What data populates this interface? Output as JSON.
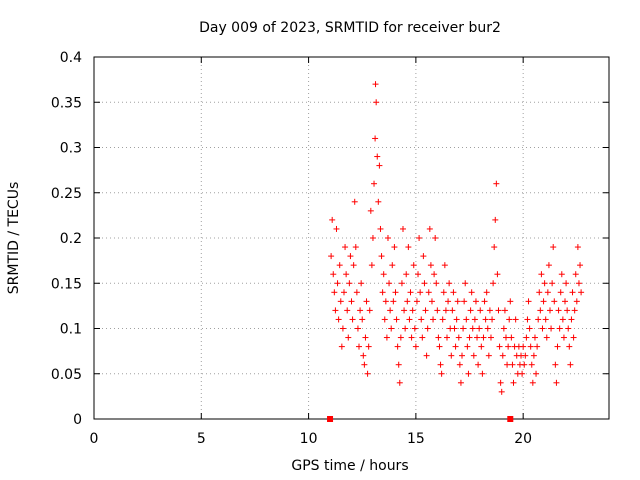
{
  "chart_data": {
    "type": "scatter",
    "title": "Day 009 of 2023, SRMTID for receiver bur2",
    "xlabel": "GPS time / hours",
    "ylabel": "SRMTID / TECUs",
    "xlim": [
      0,
      24
    ],
    "ylim": [
      0,
      0.4
    ],
    "xticks": [
      0,
      5,
      10,
      15,
      20
    ],
    "xtick_labels": [
      "0",
      "5",
      "10",
      "15",
      "20"
    ],
    "yticks": [
      0,
      0.05,
      0.1,
      0.15,
      0.2,
      0.25,
      0.3,
      0.35,
      0.4
    ],
    "ytick_labels": [
      "0",
      "0.05",
      "0.1",
      "0.15",
      "0.2",
      "0.25",
      "0.3",
      "0.35",
      "0.4"
    ],
    "grid": true,
    "marker": "plus",
    "color": "#ff0000",
    "axis_markers": [
      11.0,
      19.4
    ],
    "series": [
      {
        "name": "SRMTID",
        "points": [
          [
            11.05,
            0.18
          ],
          [
            11.1,
            0.22
          ],
          [
            11.15,
            0.16
          ],
          [
            11.2,
            0.14
          ],
          [
            11.25,
            0.12
          ],
          [
            11.3,
            0.21
          ],
          [
            11.35,
            0.15
          ],
          [
            11.4,
            0.11
          ],
          [
            11.45,
            0.17
          ],
          [
            11.5,
            0.13
          ],
          [
            11.55,
            0.08
          ],
          [
            11.6,
            0.1
          ],
          [
            11.65,
            0.14
          ],
          [
            11.7,
            0.19
          ],
          [
            11.75,
            0.16
          ],
          [
            11.8,
            0.12
          ],
          [
            11.85,
            0.09
          ],
          [
            11.9,
            0.15
          ],
          [
            11.95,
            0.18
          ],
          [
            12.0,
            0.13
          ],
          [
            12.05,
            0.11
          ],
          [
            12.1,
            0.17
          ],
          [
            12.15,
            0.24
          ],
          [
            12.2,
            0.19
          ],
          [
            12.25,
            0.14
          ],
          [
            12.3,
            0.1
          ],
          [
            12.35,
            0.08
          ],
          [
            12.4,
            0.12
          ],
          [
            12.45,
            0.15
          ],
          [
            12.5,
            0.11
          ],
          [
            12.55,
            0.07
          ],
          [
            12.6,
            0.06
          ],
          [
            12.65,
            0.09
          ],
          [
            12.7,
            0.13
          ],
          [
            12.75,
            0.05
          ],
          [
            12.8,
            0.08
          ],
          [
            12.85,
            0.12
          ],
          [
            12.9,
            0.23
          ],
          [
            12.95,
            0.17
          ],
          [
            13.0,
            0.2
          ],
          [
            13.05,
            0.26
          ],
          [
            13.1,
            0.31
          ],
          [
            13.12,
            0.37
          ],
          [
            13.15,
            0.35
          ],
          [
            13.2,
            0.29
          ],
          [
            13.25,
            0.24
          ],
          [
            13.3,
            0.28
          ],
          [
            13.35,
            0.21
          ],
          [
            13.4,
            0.18
          ],
          [
            13.45,
            0.14
          ],
          [
            13.5,
            0.16
          ],
          [
            13.55,
            0.11
          ],
          [
            13.6,
            0.13
          ],
          [
            13.65,
            0.09
          ],
          [
            13.7,
            0.2
          ],
          [
            13.75,
            0.15
          ],
          [
            13.8,
            0.12
          ],
          [
            13.85,
            0.1
          ],
          [
            13.9,
            0.17
          ],
          [
            13.95,
            0.13
          ],
          [
            14.0,
            0.19
          ],
          [
            14.05,
            0.14
          ],
          [
            14.1,
            0.11
          ],
          [
            14.15,
            0.08
          ],
          [
            14.2,
            0.06
          ],
          [
            14.25,
            0.04
          ],
          [
            14.3,
            0.09
          ],
          [
            14.35,
            0.15
          ],
          [
            14.4,
            0.21
          ],
          [
            14.45,
            0.12
          ],
          [
            14.5,
            0.1
          ],
          [
            14.55,
            0.16
          ],
          [
            14.6,
            0.13
          ],
          [
            14.65,
            0.19
          ],
          [
            14.7,
            0.11
          ],
          [
            14.75,
            0.14
          ],
          [
            14.8,
            0.09
          ],
          [
            14.85,
            0.12
          ],
          [
            14.9,
            0.17
          ],
          [
            14.95,
            0.1
          ],
          [
            15.0,
            0.08
          ],
          [
            15.05,
            0.13
          ],
          [
            15.1,
            0.16
          ],
          [
            15.15,
            0.2
          ],
          [
            15.2,
            0.14
          ],
          [
            15.25,
            0.11
          ],
          [
            15.3,
            0.09
          ],
          [
            15.35,
            0.18
          ],
          [
            15.4,
            0.15
          ],
          [
            15.45,
            0.12
          ],
          [
            15.5,
            0.07
          ],
          [
            15.55,
            0.1
          ],
          [
            15.6,
            0.14
          ],
          [
            15.65,
            0.21
          ],
          [
            15.7,
            0.17
          ],
          [
            15.75,
            0.13
          ],
          [
            15.8,
            0.11
          ],
          [
            15.85,
            0.16
          ],
          [
            15.9,
            0.2
          ],
          [
            15.95,
            0.15
          ],
          [
            16.0,
            0.12
          ],
          [
            16.05,
            0.09
          ],
          [
            16.1,
            0.08
          ],
          [
            16.15,
            0.06
          ],
          [
            16.2,
            0.05
          ],
          [
            16.25,
            0.11
          ],
          [
            16.3,
            0.14
          ],
          [
            16.35,
            0.17
          ],
          [
            16.4,
            0.12
          ],
          [
            16.45,
            0.09
          ],
          [
            16.5,
            0.13
          ],
          [
            16.55,
            0.15
          ],
          [
            16.6,
            0.1
          ],
          [
            16.65,
            0.07
          ],
          [
            16.7,
            0.12
          ],
          [
            16.75,
            0.14
          ],
          [
            16.8,
            0.1
          ],
          [
            16.85,
            0.08
          ],
          [
            16.9,
            0.11
          ],
          [
            16.95,
            0.13
          ],
          [
            17.0,
            0.09
          ],
          [
            17.05,
            0.06
          ],
          [
            17.1,
            0.04
          ],
          [
            17.15,
            0.07
          ],
          [
            17.2,
            0.1
          ],
          [
            17.25,
            0.13
          ],
          [
            17.3,
            0.15
          ],
          [
            17.35,
            0.11
          ],
          [
            17.4,
            0.08
          ],
          [
            17.45,
            0.05
          ],
          [
            17.5,
            0.09
          ],
          [
            17.55,
            0.12
          ],
          [
            17.6,
            0.14
          ],
          [
            17.65,
            0.1
          ],
          [
            17.7,
            0.07
          ],
          [
            17.75,
            0.11
          ],
          [
            17.8,
            0.13
          ],
          [
            17.85,
            0.09
          ],
          [
            17.9,
            0.06
          ],
          [
            17.95,
            0.1
          ],
          [
            18.0,
            0.12
          ],
          [
            18.05,
            0.08
          ],
          [
            18.1,
            0.05
          ],
          [
            18.15,
            0.09
          ],
          [
            18.2,
            0.13
          ],
          [
            18.25,
            0.11
          ],
          [
            18.3,
            0.14
          ],
          [
            18.35,
            0.1
          ],
          [
            18.4,
            0.07
          ],
          [
            18.45,
            0.12
          ],
          [
            18.5,
            0.09
          ],
          [
            18.55,
            0.11
          ],
          [
            18.6,
            0.15
          ],
          [
            18.65,
            0.19
          ],
          [
            18.7,
            0.22
          ],
          [
            18.75,
            0.26
          ],
          [
            18.8,
            0.16
          ],
          [
            18.85,
            0.12
          ],
          [
            18.9,
            0.08
          ],
          [
            18.95,
            0.04
          ],
          [
            19.0,
            0.03
          ],
          [
            19.05,
            0.07
          ],
          [
            19.1,
            0.1
          ],
          [
            19.15,
            0.12
          ],
          [
            19.2,
            0.09
          ],
          [
            19.25,
            0.06
          ],
          [
            19.3,
            0.08
          ],
          [
            19.35,
            0.11
          ],
          [
            19.4,
            0.13
          ],
          [
            19.45,
            0.09
          ],
          [
            19.5,
            0.06
          ],
          [
            19.55,
            0.04
          ],
          [
            19.6,
            0.08
          ],
          [
            19.65,
            0.11
          ],
          [
            19.7,
            0.07
          ],
          [
            19.75,
            0.05
          ],
          [
            19.8,
            0.08
          ],
          [
            19.85,
            0.06
          ],
          [
            19.9,
            0.07
          ],
          [
            19.95,
            0.05
          ],
          [
            20.0,
            0.08
          ],
          [
            20.05,
            0.06
          ],
          [
            20.1,
            0.07
          ],
          [
            20.15,
            0.09
          ],
          [
            20.2,
            0.11
          ],
          [
            20.25,
            0.13
          ],
          [
            20.3,
            0.1
          ],
          [
            20.35,
            0.08
          ],
          [
            20.4,
            0.06
          ],
          [
            20.45,
            0.04
          ],
          [
            20.5,
            0.07
          ],
          [
            20.55,
            0.09
          ],
          [
            20.6,
            0.05
          ],
          [
            20.65,
            0.08
          ],
          [
            20.7,
            0.11
          ],
          [
            20.75,
            0.14
          ],
          [
            20.8,
            0.12
          ],
          [
            20.85,
            0.16
          ],
          [
            20.9,
            0.1
          ],
          [
            20.95,
            0.13
          ],
          [
            21.0,
            0.15
          ],
          [
            21.05,
            0.11
          ],
          [
            21.1,
            0.09
          ],
          [
            21.15,
            0.14
          ],
          [
            21.2,
            0.17
          ],
          [
            21.25,
            0.12
          ],
          [
            21.3,
            0.1
          ],
          [
            21.35,
            0.15
          ],
          [
            21.4,
            0.19
          ],
          [
            21.45,
            0.13
          ],
          [
            21.5,
            0.06
          ],
          [
            21.55,
            0.04
          ],
          [
            21.6,
            0.08
          ],
          [
            21.65,
            0.12
          ],
          [
            21.7,
            0.1
          ],
          [
            21.75,
            0.14
          ],
          [
            21.8,
            0.16
          ],
          [
            21.85,
            0.11
          ],
          [
            21.9,
            0.09
          ],
          [
            21.95,
            0.13
          ],
          [
            22.0,
            0.15
          ],
          [
            22.05,
            0.12
          ],
          [
            22.1,
            0.1
          ],
          [
            22.15,
            0.08
          ],
          [
            22.2,
            0.06
          ],
          [
            22.25,
            0.11
          ],
          [
            22.3,
            0.14
          ],
          [
            22.35,
            0.09
          ],
          [
            22.4,
            0.12
          ],
          [
            22.45,
            0.16
          ],
          [
            22.5,
            0.13
          ],
          [
            22.55,
            0.19
          ],
          [
            22.6,
            0.15
          ],
          [
            22.65,
            0.17
          ],
          [
            22.7,
            0.14
          ]
        ]
      }
    ]
  }
}
